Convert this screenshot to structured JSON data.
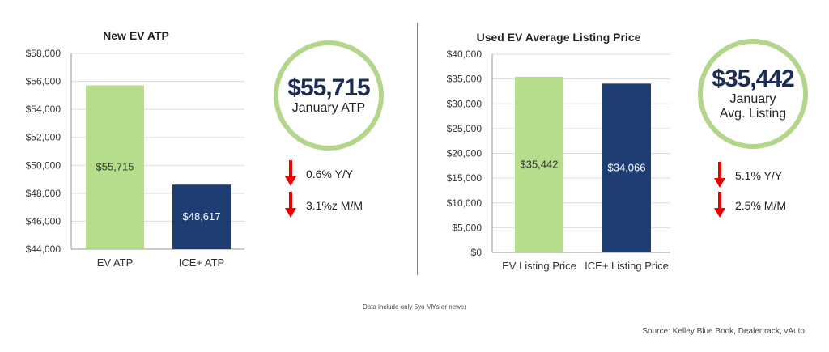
{
  "chart_data": [
    {
      "type": "bar",
      "title": "New EV ATP",
      "categories": [
        "EV ATP",
        "ICE+ ATP"
      ],
      "values": [
        55715,
        48617
      ],
      "value_labels": [
        "$55,715",
        "$48,617"
      ],
      "bar_colors": [
        "#b5dd8b",
        "#1e3d72"
      ],
      "label_colors": [
        "#333333",
        "#ffffff"
      ],
      "ylim": [
        44000,
        58000
      ],
      "yticks": [
        44000,
        46000,
        48000,
        50000,
        52000,
        54000,
        56000,
        58000
      ],
      "ytick_labels": [
        "$44,000",
        "$46,000",
        "$48,000",
        "$50,000",
        "$52,000",
        "$54,000",
        "$56,000",
        "$58,000"
      ],
      "grid": true
    },
    {
      "type": "bar",
      "title": "Used EV Average Listing Price",
      "categories": [
        "EV Listing Price",
        "ICE+ Listing Price"
      ],
      "values": [
        35442,
        34066
      ],
      "value_labels": [
        "$35,442",
        "$34,066"
      ],
      "bar_colors": [
        "#b5dd8b",
        "#1e3d72"
      ],
      "label_colors": [
        "#333333",
        "#ffffff"
      ],
      "ylim": [
        0,
        40000
      ],
      "yticks": [
        0,
        5000,
        10000,
        15000,
        20000,
        25000,
        30000,
        35000,
        40000
      ],
      "ytick_labels": [
        "$0",
        "$5,000",
        "$10,000",
        "$15,000",
        "$20,000",
        "$25,000",
        "$30,000",
        "$35,000",
        "$40,000"
      ],
      "grid": true
    }
  ],
  "left_callout": {
    "value": "$55,715",
    "caption": "January ATP"
  },
  "right_callout": {
    "value": "$35,442",
    "caption_line1": "January",
    "caption_line2": "Avg. Listing"
  },
  "left_stats": [
    {
      "text": "0.6% Y/Y"
    },
    {
      "text": "3.1%z M/M"
    }
  ],
  "right_stats": [
    {
      "text": "5.1% Y/Y"
    },
    {
      "text": "2.5% M/M"
    }
  ],
  "footnote": "Data include only 5yo MYs or newer",
  "source": "Source: Kelley Blue Book, Dealertrack, vAuto",
  "colors": {
    "ev": "#b5dd8b",
    "ice": "#1e3d72",
    "ring": "#b3d68c",
    "arrow": "#ee0000",
    "divider": "#4a8fc8"
  }
}
